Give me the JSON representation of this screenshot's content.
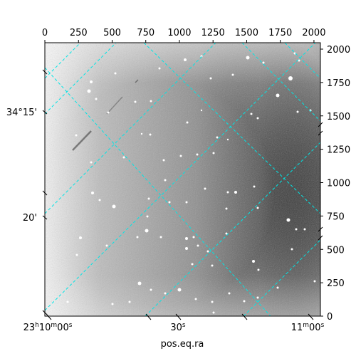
{
  "figure": {
    "xlabel_bottom": "pos.eq.ra",
    "top_ticks": [
      "0",
      "250",
      "500",
      "750",
      "1000",
      "1250",
      "1500",
      "1750",
      "2000"
    ],
    "right_ticks": [
      "0",
      "250",
      "500",
      "750",
      "1000",
      "1250",
      "1500",
      "1750",
      "2000"
    ],
    "left_ticks": [
      "34°15'",
      "20'"
    ],
    "bottom_ticks": [
      "23h10m00s",
      "30s",
      "11m00s"
    ],
    "grid_color": "#00e5e5"
  }
}
